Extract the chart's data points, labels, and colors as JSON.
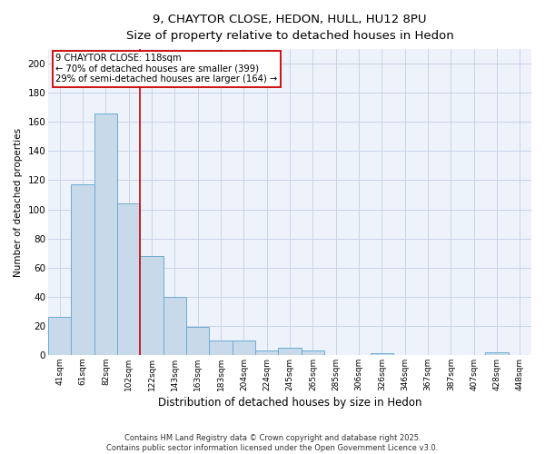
{
  "title1": "9, CHAYTOR CLOSE, HEDON, HULL, HU12 8PU",
  "title2": "Size of property relative to detached houses in Hedon",
  "xlabel": "Distribution of detached houses by size in Hedon",
  "ylabel": "Number of detached properties",
  "categories": [
    "41sqm",
    "61sqm",
    "82sqm",
    "102sqm",
    "122sqm",
    "143sqm",
    "163sqm",
    "183sqm",
    "204sqm",
    "224sqm",
    "245sqm",
    "265sqm",
    "285sqm",
    "306sqm",
    "326sqm",
    "346sqm",
    "367sqm",
    "387sqm",
    "407sqm",
    "428sqm",
    "448sqm"
  ],
  "values": [
    26,
    117,
    166,
    104,
    68,
    40,
    19,
    10,
    10,
    3,
    5,
    3,
    0,
    0,
    1,
    0,
    0,
    0,
    0,
    2,
    0
  ],
  "bar_color": "#c8daea",
  "bar_edge_color": "#6aacd4",
  "red_line_index": 3.5,
  "annotation_line1": "9 CHAYTOR CLOSE: 118sqm",
  "annotation_line2": "← 70% of detached houses are smaller (399)",
  "annotation_line3": "29% of semi-detached houses are larger (164) →",
  "annotation_box_color": "#ffffff",
  "annotation_box_edge": "#cc0000",
  "red_line_color": "#cc0000",
  "footer": "Contains HM Land Registry data © Crown copyright and database right 2025.\nContains public sector information licensed under the Open Government Licence v3.0.",
  "ylim": [
    0,
    210
  ],
  "yticks": [
    0,
    20,
    40,
    60,
    80,
    100,
    120,
    140,
    160,
    180,
    200
  ],
  "grid_color": "#c8d4e8",
  "bg_color": "#eef2fa"
}
